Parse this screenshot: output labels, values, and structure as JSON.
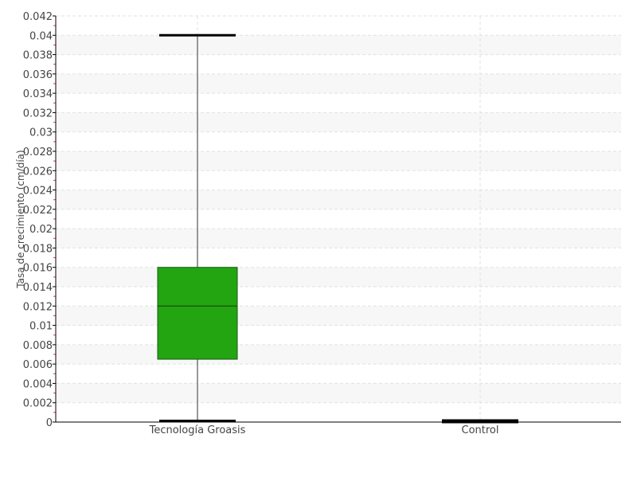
{
  "chart_data": {
    "type": "boxplot",
    "title": "",
    "xlabel": "",
    "ylabel": "Tasa de crecimiento (cm/día)",
    "ylim": [
      0,
      0.042
    ],
    "yticks": [
      "0",
      "0.002",
      "0.004",
      "0.006",
      "0.008",
      "0.01",
      "0.012",
      "0.014",
      "0.016",
      "0.018",
      "0.02",
      "0.022",
      "0.024",
      "0.026",
      "0.028",
      "0.03",
      "0.032",
      "0.034",
      "0.036",
      "0.038",
      "0.04",
      "0.042"
    ],
    "grid": true,
    "categories": [
      "Tecnología Groasis",
      "Control"
    ],
    "boxes": [
      {
        "category": "Tecnología Groasis",
        "min": 0,
        "q1": 0.0065,
        "median": 0.012,
        "q3": 0.016,
        "max": 0.04,
        "color": "#22a511"
      },
      {
        "category": "Control",
        "min": 0,
        "q1": 0,
        "median": 0,
        "q3": 0,
        "max": 0,
        "color": "#22a511"
      }
    ],
    "colors": {
      "axis": "#000000",
      "grid": "#e2e2e2",
      "band": "#f7f7f7",
      "whisker": "#777777",
      "minor_tick": "#e0403a"
    }
  }
}
